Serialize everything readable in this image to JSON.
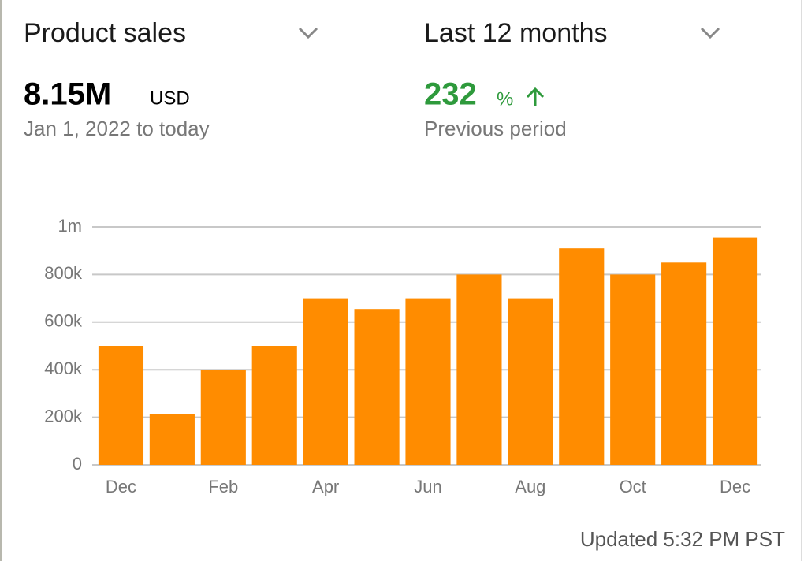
{
  "header": {
    "metric": "Product sales",
    "period": "Last 12 months",
    "total": "8.15M",
    "currency": "USD",
    "range": "Jan 1,  2022 to today",
    "change": "232",
    "change_unit": "%",
    "change_label": "Previous period"
  },
  "chart_data": {
    "type": "bar",
    "categories": [
      "Dec",
      null,
      "Feb",
      null,
      "Apr",
      null,
      "Jun",
      null,
      "Aug",
      null,
      "Oct",
      null,
      "Dec"
    ],
    "values": [
      500000,
      215000,
      400000,
      500000,
      700000,
      655000,
      700000,
      800000,
      700000,
      910000,
      800000,
      850000,
      955000
    ],
    "color": "#ff8c00",
    "ylim": [
      0,
      1000000
    ],
    "yticks": [
      0,
      {
        "value": 200000,
        "label": "200k"
      },
      {
        "value": 400000,
        "label": "400k"
      },
      {
        "value": 600000,
        "label": "600k"
      },
      {
        "value": 800000,
        "label": "800k"
      },
      {
        "value": 1000000,
        "label": "1m"
      }
    ],
    "grid": true
  },
  "footer": {
    "updated": "Updated 5:32 PM PST"
  }
}
